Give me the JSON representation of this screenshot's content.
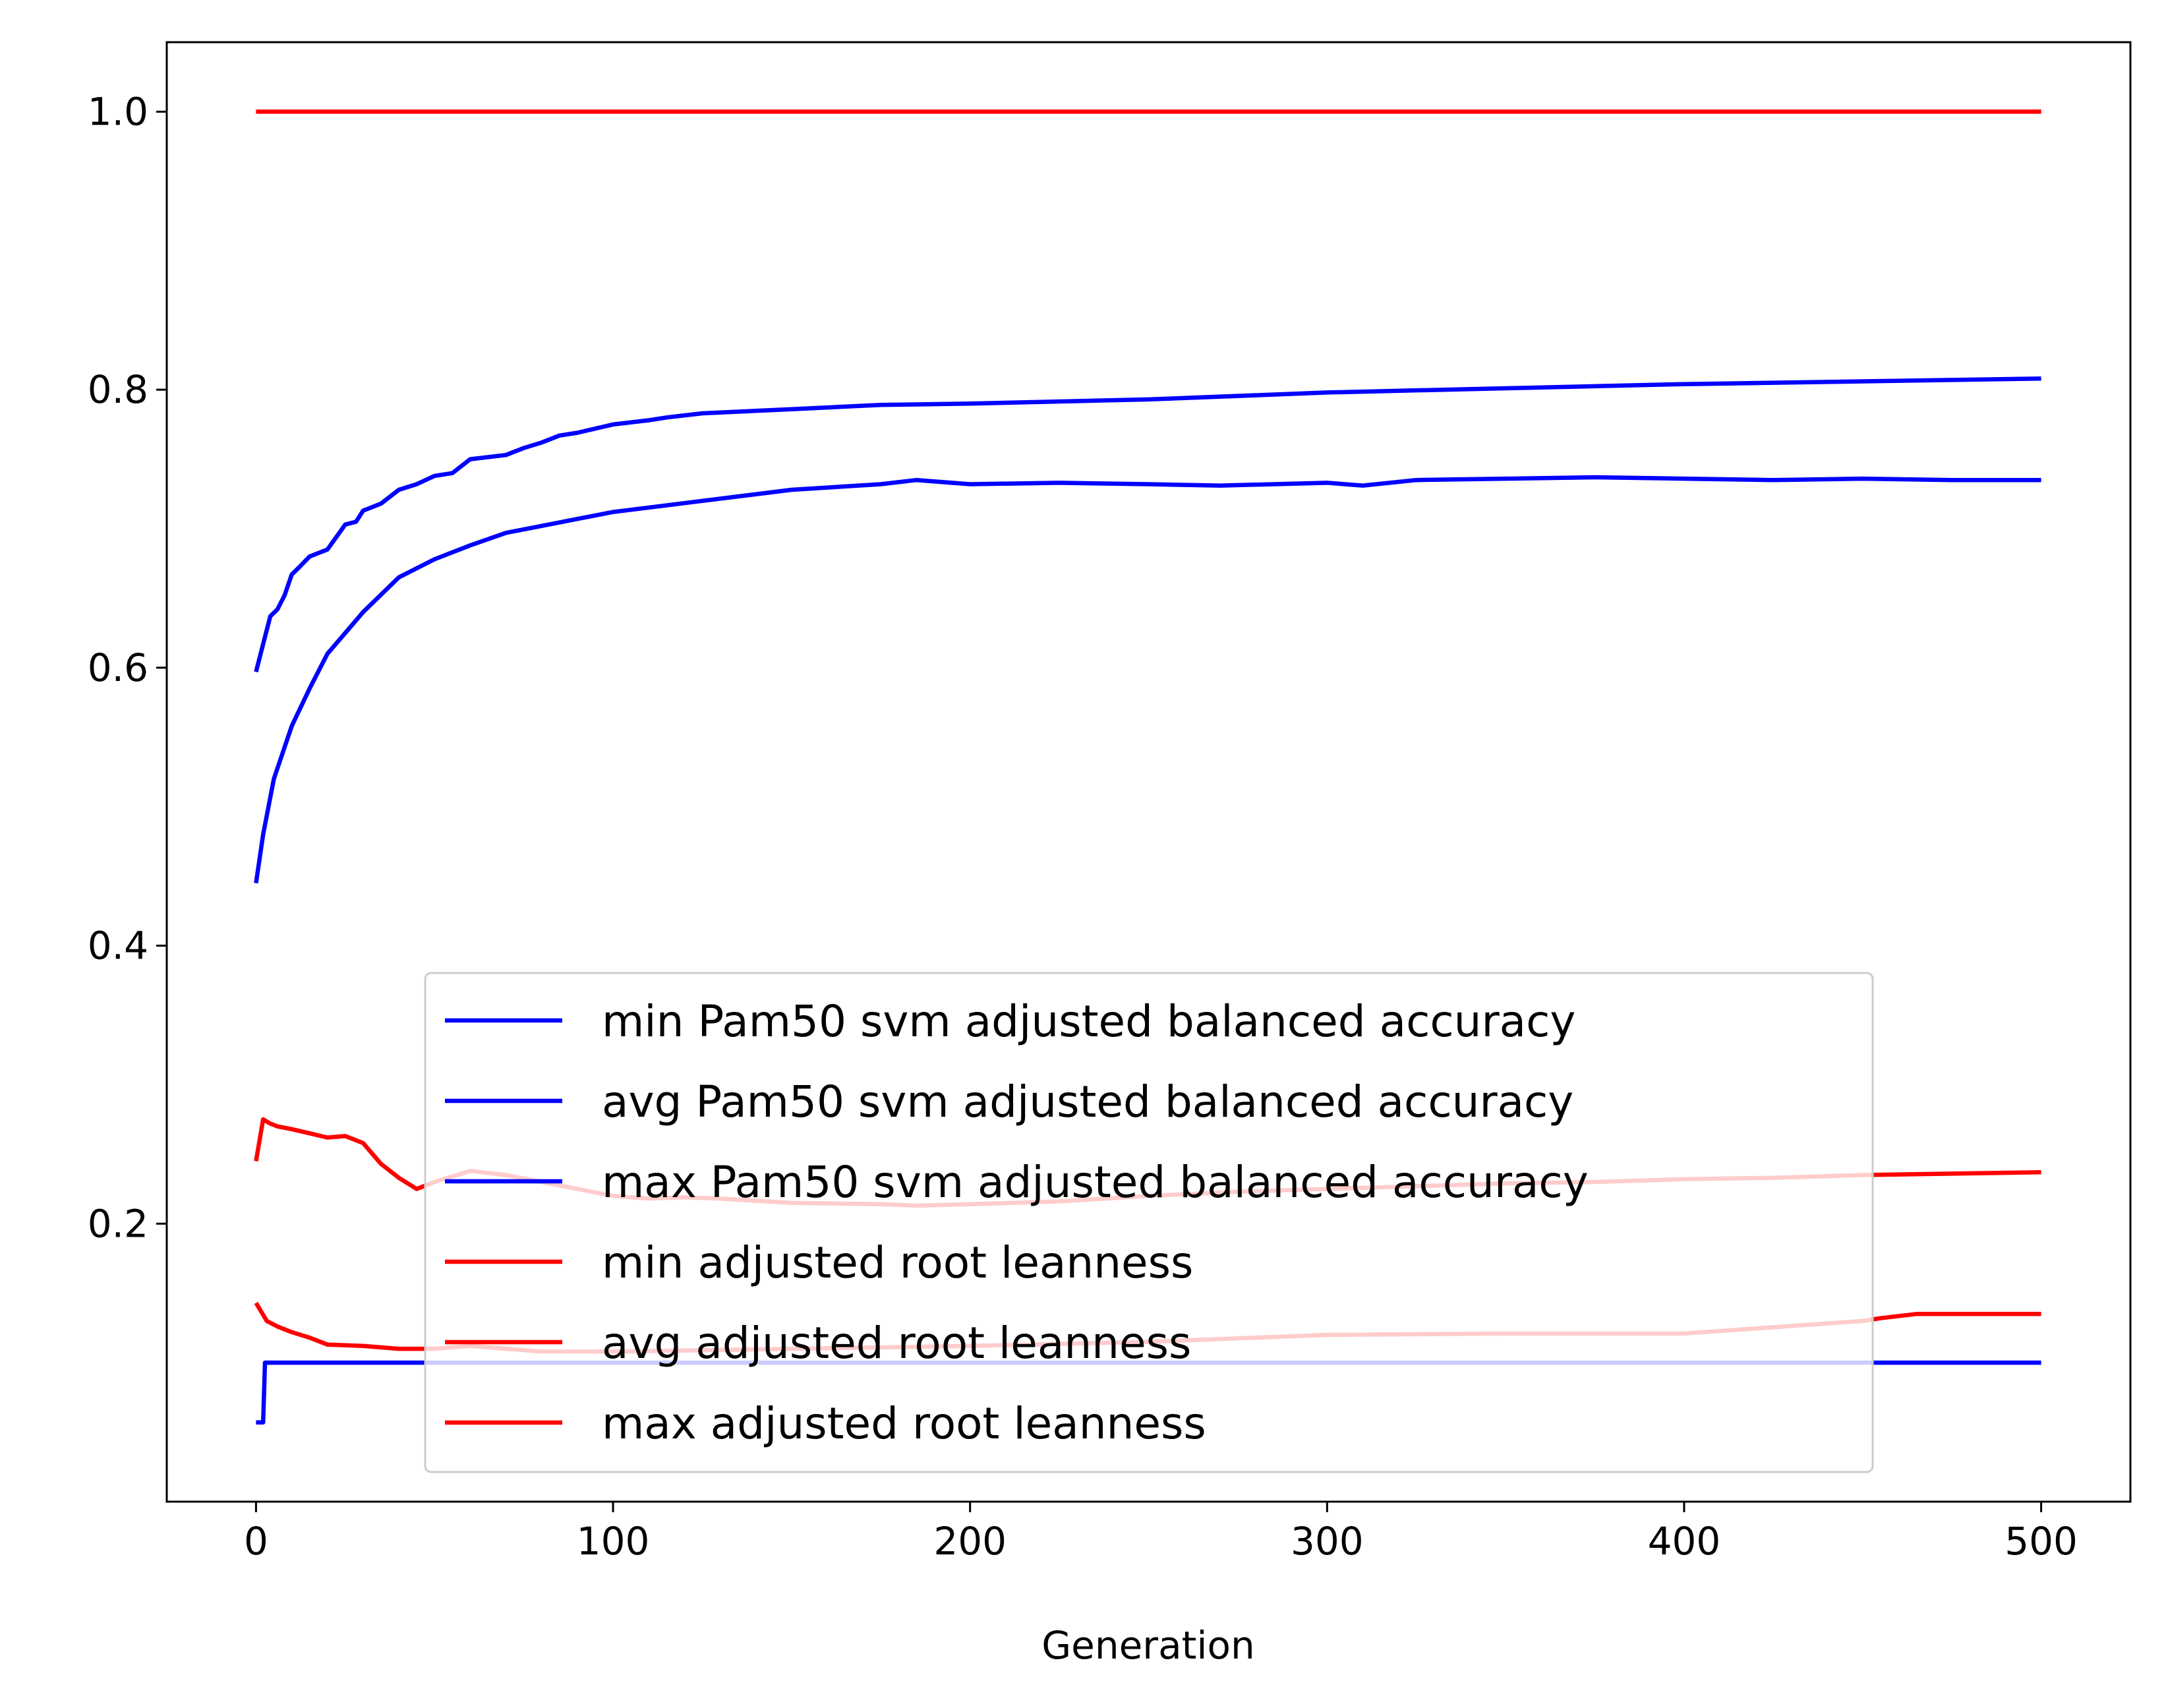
{
  "chart_data": {
    "type": "line",
    "title": "",
    "xlabel": "Generation",
    "ylabel": "",
    "xlim": [
      -25,
      525
    ],
    "ylim": [
      0.0,
      1.05
    ],
    "xticks": [
      0,
      100,
      200,
      300,
      400,
      500
    ],
    "yticks": [
      0.2,
      0.4,
      0.6,
      0.8,
      1.0
    ],
    "xtick_labels": [
      "0",
      "100",
      "200",
      "300",
      "400",
      "500"
    ],
    "ytick_labels": [
      "0.2",
      "0.4",
      "0.6",
      "0.8",
      "1.0"
    ],
    "grid": false,
    "legend_placement": "lower center",
    "series": [
      {
        "name": "min Pam50 svm adjusted balanced accuracy",
        "color": "#0000ff",
        "x": [
          0,
          2,
          2.5,
          10,
          50,
          100,
          200,
          300,
          400,
          500
        ],
        "y": [
          0.057,
          0.057,
          0.1,
          0.1,
          0.1,
          0.1,
          0.1,
          0.1,
          0.1,
          0.1
        ]
      },
      {
        "name": "avg Pam50 svm adjusted balanced accuracy",
        "color": "#0000ff",
        "x": [
          0,
          2,
          5,
          10,
          15,
          20,
          30,
          40,
          50,
          60,
          70,
          80,
          100,
          125,
          150,
          175,
          185,
          200,
          225,
          250,
          270,
          300,
          310,
          325,
          350,
          375,
          400,
          425,
          450,
          475,
          500
        ],
        "y": [
          0.445,
          0.48,
          0.52,
          0.558,
          0.585,
          0.61,
          0.64,
          0.665,
          0.678,
          0.688,
          0.697,
          0.702,
          0.712,
          0.72,
          0.728,
          0.732,
          0.735,
          0.732,
          0.733,
          0.732,
          0.731,
          0.733,
          0.731,
          0.735,
          0.736,
          0.737,
          0.736,
          0.735,
          0.736,
          0.735,
          0.735
        ]
      },
      {
        "name": "max Pam50 svm adjusted balanced accuracy",
        "color": "#0000ff",
        "x": [
          0,
          2,
          4,
          6,
          8,
          10,
          12,
          15,
          20,
          25,
          28,
          30,
          35,
          40,
          45,
          50,
          55,
          60,
          70,
          75,
          80,
          85,
          90,
          100,
          110,
          115,
          125,
          150,
          175,
          200,
          250,
          300,
          350,
          400,
          450,
          500
        ],
        "y": [
          0.597,
          0.617,
          0.637,
          0.642,
          0.652,
          0.667,
          0.672,
          0.68,
          0.685,
          0.703,
          0.705,
          0.713,
          0.718,
          0.728,
          0.732,
          0.738,
          0.74,
          0.75,
          0.753,
          0.758,
          0.762,
          0.767,
          0.769,
          0.775,
          0.778,
          0.78,
          0.783,
          0.786,
          0.789,
          0.79,
          0.793,
          0.798,
          0.801,
          0.804,
          0.806,
          0.808
        ]
      },
      {
        "name": "min adjusted root leanness",
        "color": "#ff0000",
        "x": [
          0,
          3,
          6,
          10,
          15,
          20,
          30,
          40,
          50,
          60,
          80,
          100,
          125,
          150,
          200,
          250,
          300,
          350,
          400,
          450,
          455,
          465,
          500
        ],
        "y": [
          0.143,
          0.13,
          0.126,
          0.122,
          0.118,
          0.113,
          0.112,
          0.11,
          0.11,
          0.112,
          0.108,
          0.108,
          0.109,
          0.11,
          0.112,
          0.115,
          0.12,
          0.121,
          0.121,
          0.13,
          0.132,
          0.135,
          0.135
        ]
      },
      {
        "name": "avg adjusted root leanness",
        "color": "#ff0000",
        "x": [
          0,
          2,
          4,
          6,
          10,
          15,
          20,
          25,
          30,
          35,
          40,
          45,
          50,
          60,
          70,
          80,
          90,
          100,
          110,
          120,
          130,
          150,
          175,
          185,
          200,
          225,
          250,
          275,
          300,
          325,
          350,
          375,
          400,
          425,
          450,
          475,
          500
        ],
        "y": [
          0.245,
          0.275,
          0.272,
          0.27,
          0.268,
          0.265,
          0.262,
          0.263,
          0.258,
          0.243,
          0.233,
          0.225,
          0.23,
          0.238,
          0.235,
          0.23,
          0.225,
          0.22,
          0.218,
          0.219,
          0.218,
          0.215,
          0.214,
          0.213,
          0.214,
          0.216,
          0.22,
          0.223,
          0.225,
          0.227,
          0.229,
          0.23,
          0.232,
          0.233,
          0.235,
          0.236,
          0.237
        ]
      },
      {
        "name": "max adjusted root leanness",
        "color": "#ff0000",
        "x": [
          0,
          100,
          200,
          300,
          400,
          500
        ],
        "y": [
          1.0,
          1.0,
          1.0,
          1.0,
          1.0,
          1.0
        ]
      }
    ]
  }
}
